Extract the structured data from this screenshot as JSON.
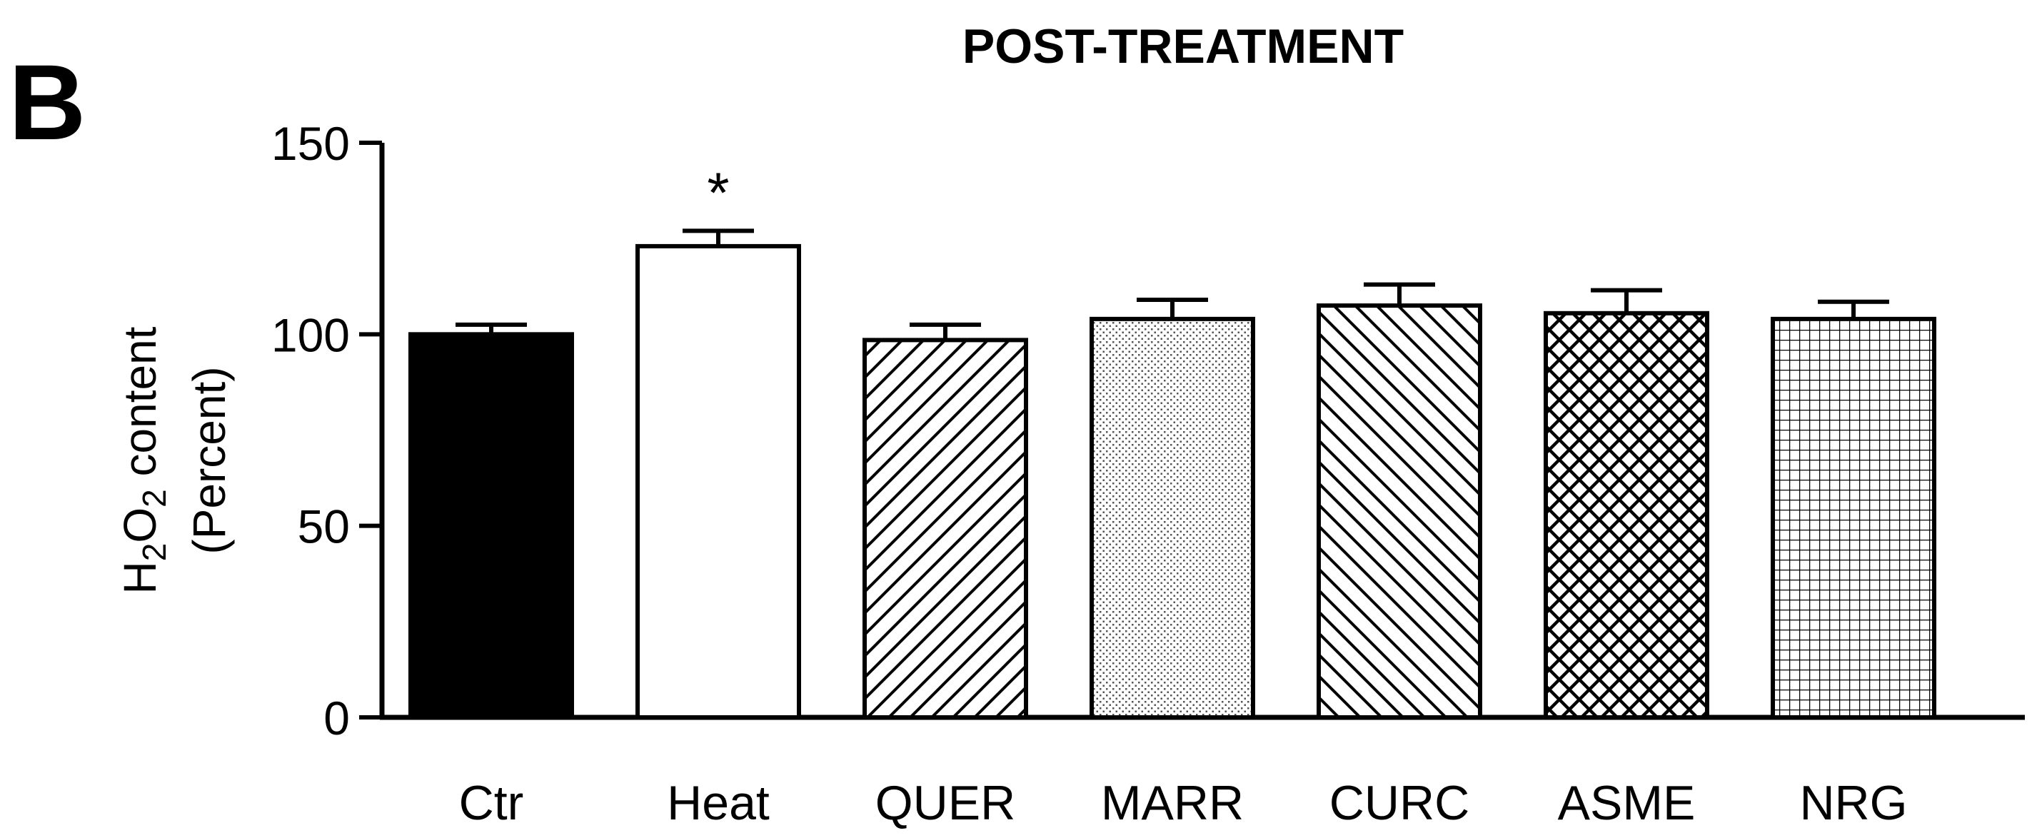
{
  "panel_label": "B",
  "chart_data": {
    "type": "bar",
    "title": "POST-TREATMENT",
    "ylabel": {
      "line1_prefix": "H",
      "line1_sub1": "2",
      "line1_mid": "O",
      "line1_sub2": "2",
      "line1_suffix": " content",
      "line2": "(Percent)"
    },
    "xlabel": "",
    "ylim": [
      0,
      150
    ],
    "yticks": [
      0,
      50,
      100,
      150
    ],
    "grid": false,
    "legend": "none",
    "categories": [
      "Ctr",
      "Heat",
      "QUER",
      "MARR",
      "CURC",
      "ASME",
      "NRG"
    ],
    "values": [
      100,
      123,
      98.5,
      104,
      107.5,
      105.5,
      104
    ],
    "errors": [
      2.5,
      4,
      4,
      5,
      5.5,
      6,
      4.5
    ],
    "significance": [
      "",
      "*",
      "",
      "",
      "",
      "",
      ""
    ],
    "fills": [
      "solid-black",
      "white",
      "diagonal-up",
      "dots",
      "diagonal-down",
      "crosshatch",
      "grid"
    ]
  }
}
